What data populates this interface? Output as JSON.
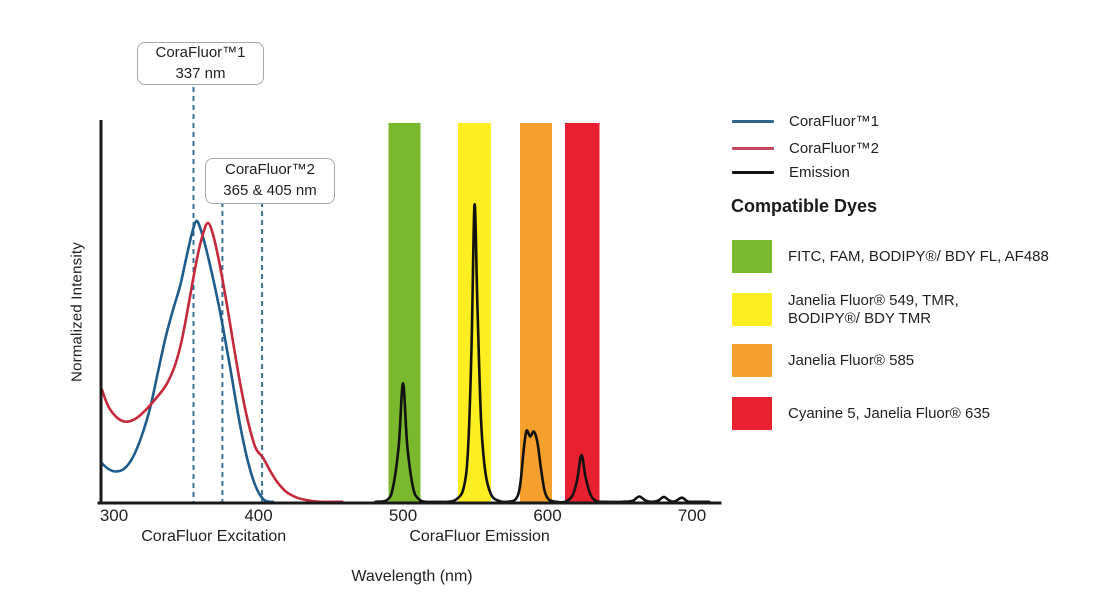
{
  "figure": {
    "background": "#ffffff",
    "text_color": "#231f20",
    "axis_color": "#1a1a1a"
  },
  "chart_data": {
    "type": "line",
    "title": "",
    "xlabel": "Wavelength (nm)",
    "ylabel": "Normalized Intensity",
    "x_domain_nm": [
      290,
      720
    ],
    "ylim": [
      0,
      1
    ],
    "grid": false,
    "legend_position": "right",
    "x_ticks": [
      {
        "nm": 300,
        "label": "300"
      },
      {
        "nm": 400,
        "label": "400"
      },
      {
        "nm": 500,
        "label": "500"
      },
      {
        "nm": 600,
        "label": "600"
      },
      {
        "nm": 700,
        "label": "700"
      }
    ],
    "x_sections": [
      {
        "label": "CoraFluor Excitation",
        "center_nm": 369
      },
      {
        "label": "CoraFluor Emission",
        "center_nm": 553
      }
    ],
    "dashed_marker_color": "#3a6f96",
    "annotations": [
      {
        "line1": "CoraFluor™1",
        "line2": "337 nm",
        "marker_nms_drawn": [
          355
        ]
      },
      {
        "line1": "CoraFluor™2",
        "line2": "365 & 405 nm",
        "marker_nms_drawn": [
          375,
          402.5
        ]
      }
    ],
    "bands": [
      {
        "name": "green-filter-window",
        "nm_range": [
          490,
          512
        ],
        "color": "#7ab82e"
      },
      {
        "name": "yellow-filter-window",
        "nm_range": [
          538,
          561
        ],
        "color": "#fcee21"
      },
      {
        "name": "orange-filter-window",
        "nm_range": [
          581,
          603
        ],
        "color": "#f5a02d"
      },
      {
        "name": "red-filter-window",
        "nm_range": [
          612,
          636
        ],
        "color": "#e8202f"
      }
    ],
    "series": [
      {
        "name": "CoraFluor™1 excitation",
        "color": "#1e5c8d",
        "points": [
          [
            291.5,
            0.105
          ],
          [
            296,
            0.09
          ],
          [
            301,
            0.083
          ],
          [
            307,
            0.09
          ],
          [
            313,
            0.12
          ],
          [
            319,
            0.175
          ],
          [
            325,
            0.25
          ],
          [
            331,
            0.355
          ],
          [
            336,
            0.44
          ],
          [
            341,
            0.51
          ],
          [
            346,
            0.575
          ],
          [
            350,
            0.645
          ],
          [
            354,
            0.71
          ],
          [
            357,
            0.742
          ],
          [
            360,
            0.72
          ],
          [
            364,
            0.665
          ],
          [
            368,
            0.6
          ],
          [
            372,
            0.53
          ],
          [
            376,
            0.45
          ],
          [
            380,
            0.365
          ],
          [
            384,
            0.275
          ],
          [
            388,
            0.19
          ],
          [
            392,
            0.12
          ],
          [
            396,
            0.065
          ],
          [
            400,
            0.028
          ],
          [
            404,
            0.008
          ],
          [
            408,
            0.001
          ],
          [
            410,
            0
          ]
        ]
      },
      {
        "name": "CoraFluor™2 excitation",
        "color": "#c4293c",
        "points": [
          [
            291.5,
            0.3
          ],
          [
            296,
            0.255
          ],
          [
            302,
            0.225
          ],
          [
            308,
            0.214
          ],
          [
            315,
            0.222
          ],
          [
            322,
            0.245
          ],
          [
            329,
            0.275
          ],
          [
            336,
            0.31
          ],
          [
            342,
            0.36
          ],
          [
            347,
            0.43
          ],
          [
            352,
            0.53
          ],
          [
            357,
            0.635
          ],
          [
            361,
            0.7
          ],
          [
            365,
            0.737
          ],
          [
            369,
            0.7
          ],
          [
            373,
            0.63
          ],
          [
            378,
            0.525
          ],
          [
            383,
            0.41
          ],
          [
            388,
            0.3
          ],
          [
            393,
            0.21
          ],
          [
            398,
            0.145
          ],
          [
            403,
            0.12
          ],
          [
            408,
            0.085
          ],
          [
            413,
            0.055
          ],
          [
            419,
            0.03
          ],
          [
            426,
            0.015
          ],
          [
            434,
            0.007
          ],
          [
            443,
            0.003
          ],
          [
            452,
            0.001
          ],
          [
            458,
            0
          ]
        ]
      },
      {
        "name": "Emission",
        "color": "#121212",
        "points": [
          [
            481,
            0.002
          ],
          [
            489,
            0.008
          ],
          [
            493,
            0.04
          ],
          [
            497,
            0.15
          ],
          [
            500,
            0.315
          ],
          [
            503,
            0.15
          ],
          [
            507,
            0.04
          ],
          [
            511,
            0.01
          ],
          [
            516,
            0.002
          ],
          [
            524,
            0.002
          ],
          [
            531,
            0.003
          ],
          [
            537,
            0.01
          ],
          [
            542,
            0.04
          ],
          [
            545,
            0.14
          ],
          [
            547.5,
            0.42
          ],
          [
            549.5,
            0.785
          ],
          [
            551.5,
            0.52
          ],
          [
            554,
            0.22
          ],
          [
            557,
            0.08
          ],
          [
            561,
            0.022
          ],
          [
            566,
            0.006
          ],
          [
            572,
            0.003
          ],
          [
            578,
            0.01
          ],
          [
            581,
            0.045
          ],
          [
            583.5,
            0.14
          ],
          [
            585.5,
            0.19
          ],
          [
            588,
            0.175
          ],
          [
            590.5,
            0.188
          ],
          [
            593,
            0.16
          ],
          [
            595.5,
            0.09
          ],
          [
            598,
            0.032
          ],
          [
            601,
            0.009
          ],
          [
            606,
            0.002
          ],
          [
            612,
            0.003
          ],
          [
            617,
            0.018
          ],
          [
            620.5,
            0.06
          ],
          [
            623.5,
            0.126
          ],
          [
            626.5,
            0.065
          ],
          [
            630,
            0.02
          ],
          [
            634,
            0.005
          ],
          [
            640,
            0.002
          ],
          [
            652,
            0.002
          ],
          [
            659,
            0.006
          ],
          [
            663.5,
            0.017
          ],
          [
            668,
            0.006
          ],
          [
            672,
            0.003
          ],
          [
            676.5,
            0.006
          ],
          [
            680.5,
            0.016
          ],
          [
            684.5,
            0.006
          ],
          [
            688,
            0.004
          ],
          [
            693,
            0.014
          ],
          [
            697,
            0.004
          ],
          [
            702,
            0.002
          ],
          [
            712,
            0.001
          ]
        ]
      }
    ]
  },
  "legend": {
    "items": [
      {
        "label": "CoraFluor™1",
        "color": "#2c648c"
      },
      {
        "label": "CoraFluor™2",
        "color": "#c5485a"
      },
      {
        "label": "Emission",
        "color": "#111111"
      }
    ],
    "dyes_title": "Compatible Dyes",
    "dyes": [
      {
        "color": "#7ab82e",
        "label": "FITC, FAM, BODIPY®/ BDY FL, AF488"
      },
      {
        "color": "#fcee21",
        "label": "Janelia Fluor® 549, TMR,\nBODIPY®/ BDY TMR"
      },
      {
        "color": "#f5a02d",
        "label": "Janelia Fluor® 585"
      },
      {
        "color": "#e8202f",
        "label": "Cyanine 5, Janelia Fluor® 635"
      }
    ]
  }
}
